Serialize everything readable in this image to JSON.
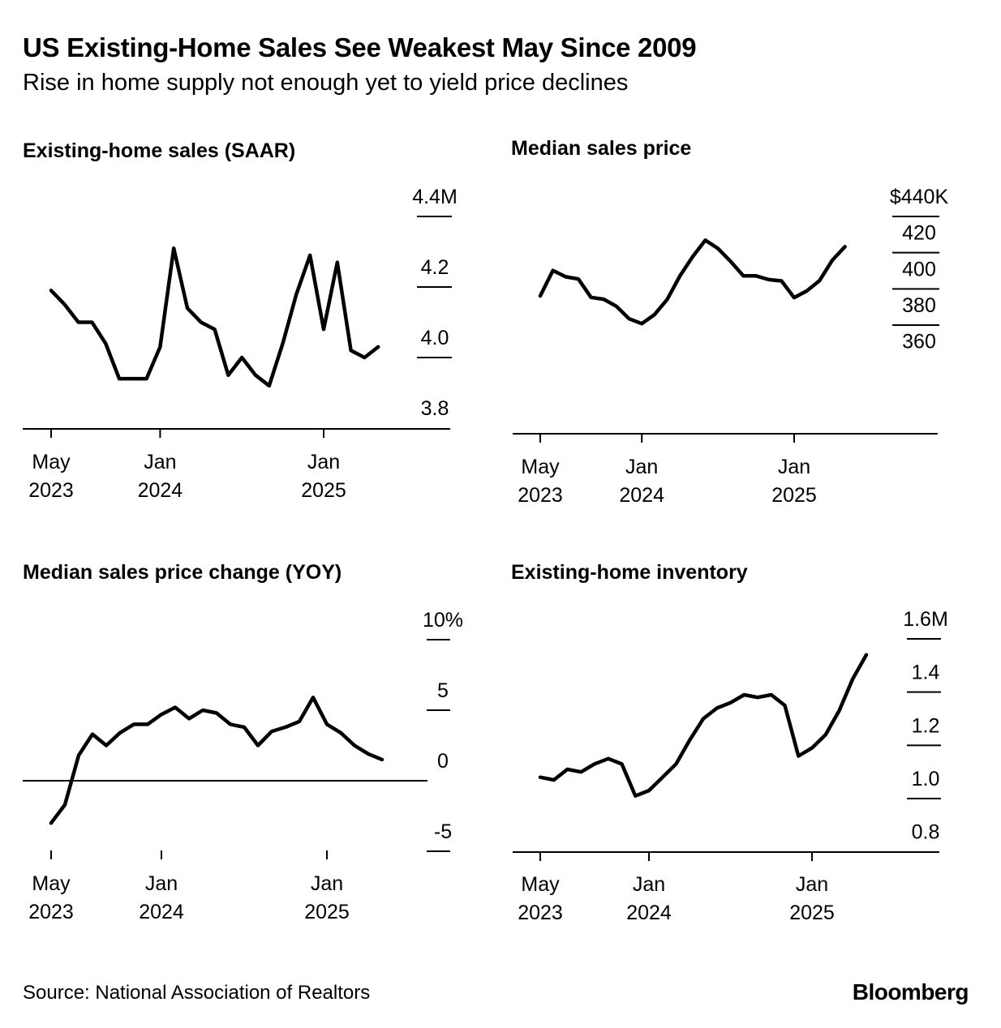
{
  "header": {
    "title": "US Existing-Home Sales See Weakest May Since 2009",
    "subtitle": "Rise in home supply not enough yet to yield price declines"
  },
  "footer": {
    "source": "Source: National Association of Realtors",
    "logo": "Bloomberg"
  },
  "chart_data": [
    {
      "type": "line",
      "title": "Existing-home sales (SAAR)",
      "x_start": "2023-05",
      "x_ticks": [
        {
          "x": "2023-05",
          "label": [
            "May",
            "2023"
          ]
        },
        {
          "x": "2024-01",
          "label": [
            "Jan",
            "2024"
          ]
        },
        {
          "x": "2025-01",
          "label": [
            "Jan",
            "2025"
          ]
        }
      ],
      "ylim": [
        3.8,
        4.4
      ],
      "y_ticks": [
        {
          "value": 4.4,
          "label": "4.4M"
        },
        {
          "value": 4.2,
          "label": "4.2"
        },
        {
          "value": 4.0,
          "label": "4.0"
        },
        {
          "value": 3.8,
          "label": "3.8"
        }
      ],
      "zero_line": false,
      "values": [
        4.19,
        4.15,
        4.1,
        4.1,
        4.04,
        3.94,
        3.94,
        3.94,
        4.03,
        4.31,
        4.14,
        4.1,
        4.08,
        3.95,
        4.0,
        3.95,
        3.92,
        4.04,
        4.18,
        4.29,
        4.08,
        4.27,
        4.02,
        4.0,
        4.03
      ]
    },
    {
      "type": "line",
      "title": "Median sales price",
      "x_start": "2023-05",
      "x_ticks": [
        {
          "x": "2023-05",
          "label": [
            "May",
            "2023"
          ]
        },
        {
          "x": "2024-01",
          "label": [
            "Jan",
            "2024"
          ]
        },
        {
          "x": "2025-01",
          "label": [
            "Jan",
            "2025"
          ]
        }
      ],
      "ylim": [
        360,
        440
      ],
      "y_ticks": [
        {
          "value": 440,
          "label": "$440K"
        },
        {
          "value": 420,
          "label": "420"
        },
        {
          "value": 400,
          "label": "400"
        },
        {
          "value": 380,
          "label": "380"
        },
        {
          "value": 360,
          "label": "360"
        }
      ],
      "zero_line": false,
      "values": [
        396.1,
        410.2,
        406.7,
        405.5,
        395.3,
        394.3,
        390.4,
        383.5,
        380.8,
        385.8,
        394.2,
        407.1,
        417.7,
        426.9,
        422.3,
        415.1,
        407.2,
        407.2,
        405.1,
        404.4,
        395.2,
        398.9,
        404.6,
        415.8,
        423.3
      ]
    },
    {
      "type": "line",
      "title": "Median sales price change (YOY)",
      "x_start": "2023-05",
      "x_ticks": [
        {
          "x": "2023-05",
          "label": [
            "May",
            "2023"
          ]
        },
        {
          "x": "2024-01",
          "label": [
            "Jan",
            "2024"
          ]
        },
        {
          "x": "2025-01",
          "label": [
            "Jan",
            "2025"
          ]
        }
      ],
      "ylim": [
        -5,
        10
      ],
      "y_ticks": [
        {
          "value": 10,
          "label": "10%"
        },
        {
          "value": 5,
          "label": "5"
        },
        {
          "value": 0,
          "label": "0"
        },
        {
          "value": -5,
          "label": "-5"
        }
      ],
      "zero_line": true,
      "values": [
        -3.0,
        -1.7,
        1.8,
        3.3,
        2.5,
        3.4,
        4.0,
        4.0,
        4.7,
        5.2,
        4.4,
        5.0,
        4.8,
        4.0,
        3.8,
        2.5,
        3.5,
        3.8,
        4.2,
        5.9,
        4.0,
        3.4,
        2.5,
        1.9,
        1.5
      ]
    },
    {
      "type": "line",
      "title": "Existing-home inventory",
      "x_start": "2023-05",
      "x_ticks": [
        {
          "x": "2023-05",
          "label": [
            "May",
            "2023"
          ]
        },
        {
          "x": "2024-01",
          "label": [
            "Jan",
            "2024"
          ]
        },
        {
          "x": "2025-01",
          "label": [
            "Jan",
            "2025"
          ]
        }
      ],
      "ylim": [
        0.8,
        1.6
      ],
      "y_ticks": [
        {
          "value": 1.6,
          "label": "1.6M"
        },
        {
          "value": 1.4,
          "label": "1.4"
        },
        {
          "value": 1.2,
          "label": "1.2"
        },
        {
          "value": 1.0,
          "label": "1.0"
        },
        {
          "value": 0.8,
          "label": "0.8"
        }
      ],
      "zero_line": false,
      "values": [
        1.08,
        1.07,
        1.11,
        1.1,
        1.13,
        1.15,
        1.13,
        1.01,
        1.03,
        1.08,
        1.13,
        1.22,
        1.3,
        1.34,
        1.36,
        1.39,
        1.38,
        1.39,
        1.35,
        1.16,
        1.19,
        1.24,
        1.33,
        1.45,
        1.54
      ]
    }
  ]
}
